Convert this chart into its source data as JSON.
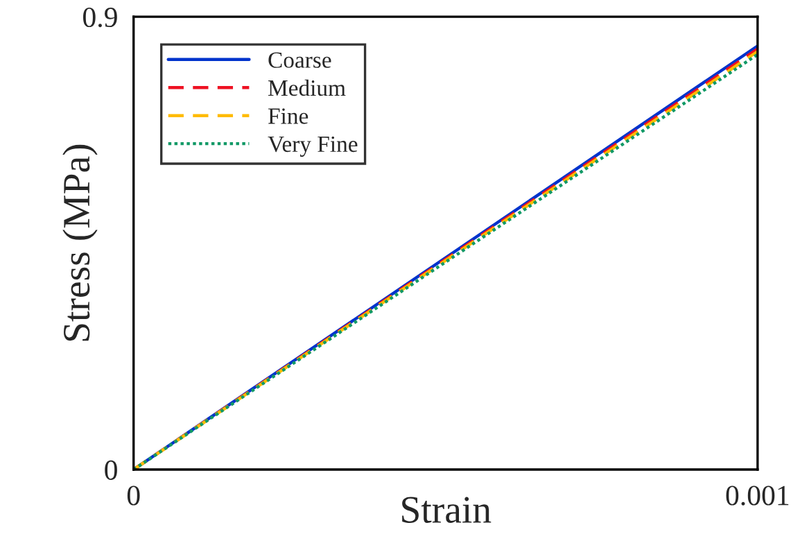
{
  "chart_data": {
    "type": "line",
    "xlabel": "Strain",
    "ylabel": "Stress (MPa)",
    "xlim": [
      0,
      0.001
    ],
    "xticks": [
      0,
      0.001
    ],
    "ylim": [
      0,
      0.9
    ],
    "yticks": [
      0,
      0.9
    ],
    "legend": "top left",
    "x": [
      0,
      0.001
    ],
    "series": [
      {
        "name": "Coarse",
        "color": "#0033cc",
        "line_style": "solid",
        "values": [
          0,
          0.842
        ]
      },
      {
        "name": "Medium",
        "color": "#ee1122",
        "line_style": "dashed",
        "values": [
          0,
          0.836
        ]
      },
      {
        "name": "Fine",
        "color": "#ffbb00",
        "line_style": "dashed",
        "values": [
          0,
          0.831
        ]
      },
      {
        "name": "Very Fine",
        "color": "#119966",
        "line_style": "dotted",
        "values": [
          0,
          0.825
        ]
      }
    ]
  }
}
